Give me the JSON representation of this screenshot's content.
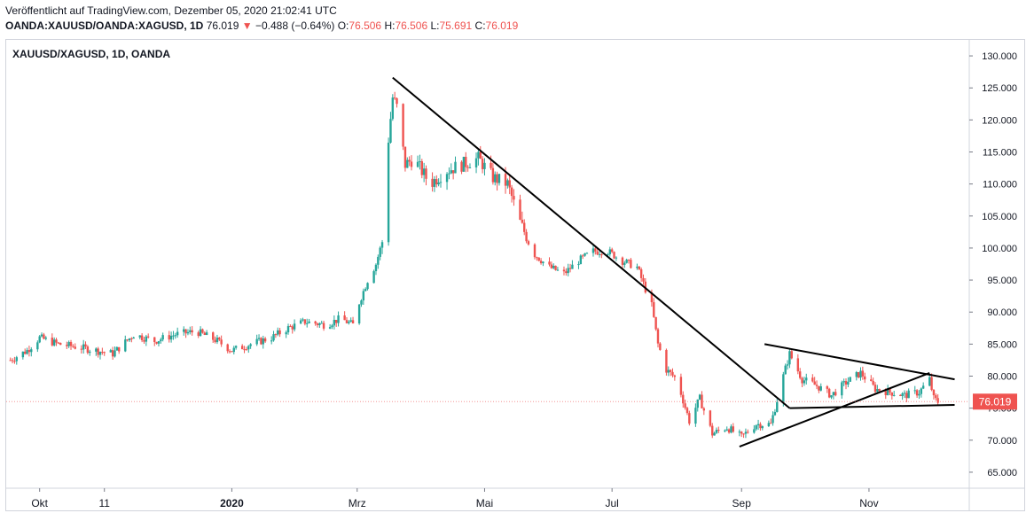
{
  "header": {
    "published": "Veröffentlicht auf TradingView.com, Dezember 05, 2020 21:02:41 UTC",
    "symbol": "OANDA:XAUUSD/OANDA:XAGUSD, 1D",
    "last": "76.019",
    "change_arrow": "▼",
    "change": "−0.488 (−0.64%)",
    "open_label": "O:",
    "open": "76.506",
    "high_label": "H:",
    "high": "76.506",
    "low_label": "L:",
    "low": "75.691",
    "close_label": "C:",
    "close": "76.019"
  },
  "pane_title": "XAUUSD/XAGUSD, 1D, OANDA",
  "colors": {
    "up": "#26a69a",
    "down": "#ef5350",
    "line": "#000000",
    "grid": "#e0e3eb"
  },
  "chart_data": {
    "type": "candlestick",
    "title": "XAUUSD/XAGUSD, 1D, OANDA",
    "x_tick_labels": [
      "Okt",
      "11",
      "2020",
      "Mrz",
      "Mai",
      "Jul",
      "Sep",
      "Nov"
    ],
    "y_tick_labels": [
      "65.000",
      "70.000",
      "75.000",
      "80.000",
      "85.000",
      "90.000",
      "95.000",
      "100.000",
      "105.000",
      "110.000",
      "115.000",
      "120.000",
      "125.000",
      "130.000"
    ],
    "ylim": [
      62.5,
      132.5
    ],
    "last_price_label": "76.019",
    "last_price": 76.019,
    "close_path": [
      [
        "2019-09-17",
        82.5
      ],
      [
        "2019-09-25",
        84.0
      ],
      [
        "2019-10-01",
        86.0
      ],
      [
        "2019-10-10",
        85.0
      ],
      [
        "2019-10-20",
        84.5
      ],
      [
        "2019-10-28",
        84.0
      ],
      [
        "2019-11-05",
        83.5
      ],
      [
        "2019-11-15",
        86.5
      ],
      [
        "2019-11-25",
        85.5
      ],
      [
        "2019-12-05",
        86.5
      ],
      [
        "2019-12-15",
        87.0
      ],
      [
        "2019-12-25",
        85.5
      ],
      [
        "2020-01-01",
        84.0
      ],
      [
        "2020-01-10",
        85.0
      ],
      [
        "2020-01-20",
        86.0
      ],
      [
        "2020-01-28",
        87.5
      ],
      [
        "2020-02-05",
        88.5
      ],
      [
        "2020-02-15",
        88.0
      ],
      [
        "2020-02-22",
        89.0
      ],
      [
        "2020-02-28",
        88.0
      ],
      [
        "2020-03-02",
        91.5
      ],
      [
        "2020-03-06",
        95.0
      ],
      [
        "2020-03-10",
        97.5
      ],
      [
        "2020-03-13",
        101.0
      ],
      [
        "2020-03-16",
        117.0
      ],
      [
        "2020-03-18",
        123.5
      ],
      [
        "2020-03-20",
        122.0
      ],
      [
        "2020-03-24",
        113.0
      ],
      [
        "2020-03-28",
        114.0
      ],
      [
        "2020-04-05",
        110.0
      ],
      [
        "2020-04-12",
        112.0
      ],
      [
        "2020-04-20",
        113.0
      ],
      [
        "2020-04-28",
        114.0
      ],
      [
        "2020-05-05",
        111.0
      ],
      [
        "2020-05-12",
        110.0
      ],
      [
        "2020-05-18",
        104.0
      ],
      [
        "2020-05-25",
        99.0
      ],
      [
        "2020-06-01",
        97.0
      ],
      [
        "2020-06-08",
        96.0
      ],
      [
        "2020-06-15",
        98.0
      ],
      [
        "2020-06-22",
        99.5
      ],
      [
        "2020-06-29",
        99.5
      ],
      [
        "2020-07-06",
        98.0
      ],
      [
        "2020-07-13",
        97.0
      ],
      [
        "2020-07-20",
        91.0
      ],
      [
        "2020-07-23",
        85.0
      ],
      [
        "2020-07-27",
        81.0
      ],
      [
        "2020-08-01",
        79.5
      ],
      [
        "2020-08-07",
        73.0
      ],
      [
        "2020-08-12",
        76.5
      ],
      [
        "2020-08-18",
        71.0
      ],
      [
        "2020-08-25",
        72.0
      ],
      [
        "2020-09-01",
        70.5
      ],
      [
        "2020-09-08",
        72.5
      ],
      [
        "2020-09-15",
        72.5
      ],
      [
        "2020-09-21",
        80.0
      ],
      [
        "2020-09-24",
        83.5
      ],
      [
        "2020-09-30",
        79.5
      ],
      [
        "2020-10-07",
        78.5
      ],
      [
        "2020-10-14",
        77.0
      ],
      [
        "2020-10-21",
        79.0
      ],
      [
        "2020-10-28",
        80.5
      ],
      [
        "2020-11-04",
        78.0
      ],
      [
        "2020-11-11",
        77.5
      ],
      [
        "2020-11-18",
        77.0
      ],
      [
        "2020-11-25",
        77.5
      ],
      [
        "2020-11-30",
        79.5
      ],
      [
        "2020-12-02",
        76.5
      ],
      [
        "2020-12-04",
        76.0
      ]
    ],
    "trendlines": [
      {
        "from": [
          "2020-03-18",
          126.6
        ],
        "to": [
          "2020-09-24",
          75.0
        ]
      },
      {
        "from": [
          "2020-09-24",
          75.0
        ],
        "to": [
          "2020-12-12",
          75.5
        ]
      },
      {
        "from": [
          "2020-08-31",
          69.0
        ],
        "to": [
          "2020-11-30",
          80.5
        ]
      },
      {
        "from": [
          "2020-09-12",
          85.0
        ],
        "to": [
          "2020-12-12",
          79.5
        ]
      }
    ]
  }
}
